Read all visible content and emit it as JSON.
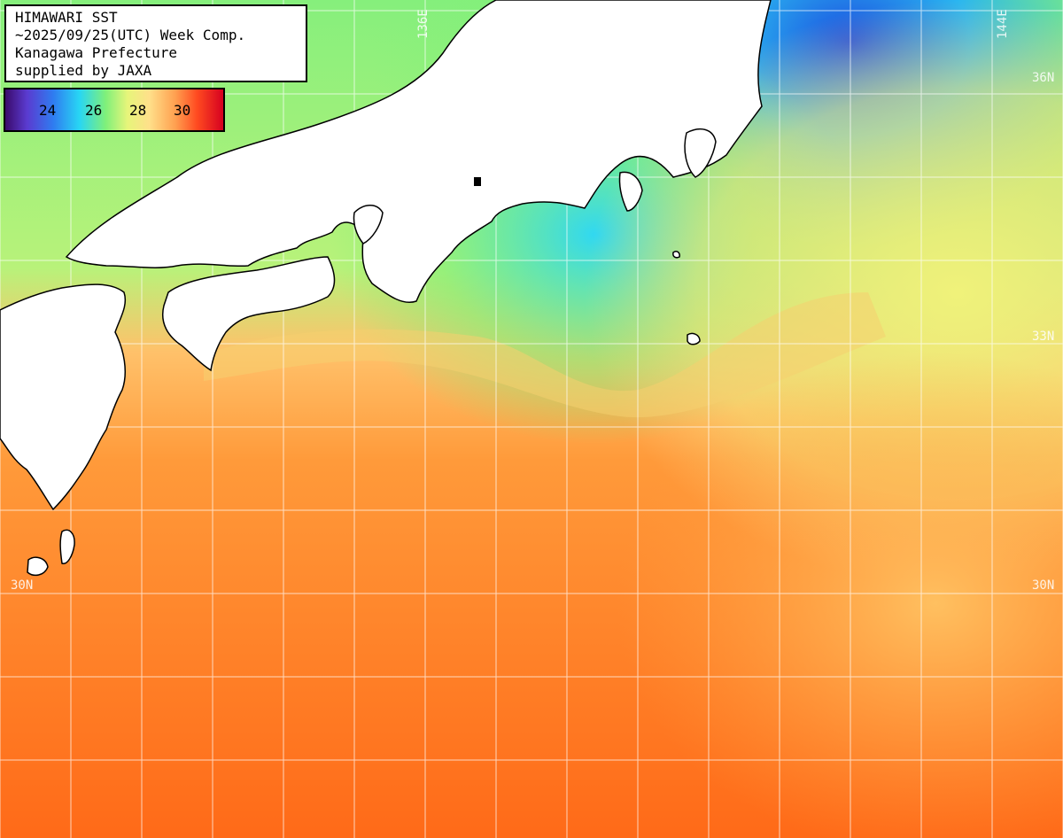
{
  "header": {
    "line1": "HIMAWARI SST",
    "line2": "~2025/09/25(UTC) Week Comp.",
    "line3": "Kanagawa Prefecture",
    "line4": "supplied by JAXA"
  },
  "colorbar": {
    "ticks": [
      "24",
      "26",
      "28",
      "30"
    ],
    "colors": [
      "#3b0a6b",
      "#2f7cf0",
      "#28d6f4",
      "#7ff07a",
      "#e6f57a",
      "#ffa050",
      "#ff4a20",
      "#d60020"
    ]
  },
  "grid_labels": {
    "lat_36": "36N",
    "lat_33": "33N",
    "lat_30_left": "30N",
    "lat_30_right": "30N",
    "lon_136": "136E",
    "lon_144": "144E"
  },
  "colors": {
    "land": "#ffffff",
    "coast": "#000000",
    "grid": "#ffffff",
    "warm_sea": "#ff7a1e",
    "mid_sea": "#e8ee78",
    "cool_sea": "#6ae88a",
    "cold_sea": "#2aa6f0"
  }
}
